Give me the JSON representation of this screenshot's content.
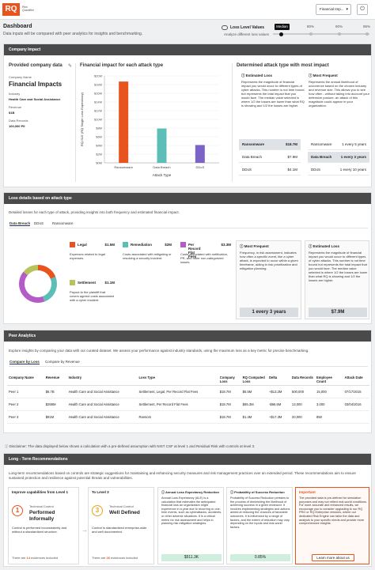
{
  "header": {
    "logo": "RQ",
    "logo_sub_1": "Risk",
    "logo_sub_2": "Quantifier",
    "org": "Financial Imp...",
    "power_icon": "power-icon"
  },
  "page": {
    "title": "Dashboard",
    "subtitle": "Data inputs will be compared with peer analytics for insights and benchmarking."
  },
  "loss_levels": {
    "title": "Loss Level Values",
    "subtitle": "Analyze different loss values",
    "median": "Median",
    "p80": "80%",
    "p90": "90%",
    "p95": "95%"
  },
  "company_impact": {
    "header": "Company Impact",
    "provided_title": "Provided company data",
    "name_label": "Company Name",
    "name": "Financial Impacts",
    "industry_label": "Industry",
    "industry": "Health Care and Social Assistance",
    "revenue_label": "Revenue",
    "revenue": "$1B",
    "records_label": "Data Records",
    "records": "100,000 PII",
    "chart_title": "Financial impact for each attack type",
    "determined_title": "Determined attack type with most impact",
    "estimated_loss_title": "Estimated Loss",
    "estimated_loss_text": "Represents the magnitude of financial impact you would occur to different types of cyber attacks. This number is not time bound but represents the total impact that you would face. The median value selected is where 1/2 the losses are lower than what RQ is showing and 1/2 the losses are higher.",
    "most_frequent_title": "Most Frequent",
    "most_frequent_text": "Represents the annual likelihood of occurrence based on the chosen industry and revenue size. This allows you to see how often - without taking into account your defensive posture- an attack of this magnitude could appear in your organization.",
    "loss_rows": [
      {
        "name": "Ransomware",
        "value": "$18.7M",
        "highlight": true
      },
      {
        "name": "Data Breach",
        "value": "$7.9M",
        "highlight": false
      },
      {
        "name": "DDoS",
        "value": "$4.1M",
        "highlight": false
      }
    ],
    "freq_rows": [
      {
        "name": "Ransomware",
        "value": "1 every 5 years",
        "highlight": false
      },
      {
        "name": "Data Breach",
        "value": "1 every 3 years",
        "highlight": true
      },
      {
        "name": "DDoS",
        "value": "1 every 10 years",
        "highlight": false
      }
    ]
  },
  "chart_data": {
    "type": "bar",
    "title": "Financial impact for each attack type",
    "categories": [
      "Ransomware",
      "Data Breach",
      "DDoS"
    ],
    "values": [
      18.7,
      7.9,
      4.1
    ],
    "colors": [
      "#e8541e",
      "#5bbfb8",
      "#7b63c8"
    ],
    "ylabel": "RQ-SLE (RQ Single Loss Expectancy)",
    "xlabel": "Attack Type",
    "yticks": [
      "$0M",
      "$2M",
      "$4M",
      "$6M",
      "$8M",
      "$10M",
      "$12M",
      "$14M",
      "$16M",
      "$18M",
      "$20M"
    ],
    "ylim": [
      0,
      20
    ]
  },
  "loss_details": {
    "header": "Loss details based on attack type",
    "description": "Detailed losses for each type of attack, providing insights into both frequency and estimated financial impact.",
    "tabs": [
      "Data Breach",
      "DDoS",
      "Ransomware"
    ],
    "donut": [
      {
        "name": "Legal",
        "value": 1.5,
        "color": "#e8541e"
      },
      {
        "name": "Remediation",
        "value": 2,
        "color": "#5bbfb8"
      },
      {
        "name": "Per Record Flat Fees",
        "value": 3.3,
        "color": "#b45bc8"
      },
      {
        "name": "Settlement",
        "value": 1.1,
        "color": "#b8c35c"
      }
    ],
    "items": [
      {
        "label": "Legal",
        "amount": "$1.5M",
        "desc": "Expenses related to legal expenses.",
        "color": "#e8541e"
      },
      {
        "label": "Remediation",
        "amount": "$2M",
        "desc": "Costs associated with mitigating or resolving a security incident.",
        "color": "#5bbfb8"
      },
      {
        "label": "Per Record Flat Fees",
        "amount": "$3.3M",
        "desc": "Costs associated with notification, PR, and other non-categorized losses.",
        "color": "#b45bc8"
      },
      {
        "label": "Settlement",
        "amount": "$1.1M",
        "desc": "Payout to the plaintiff that covers agreed costs associated with a cyber incident.",
        "color": "#b8c35c"
      }
    ],
    "most_frequent_title": "Most Frequent",
    "most_frequent_text": "Frequency, in risk assessment, indicates how often a specific event, like a cyber attack, is expected to occur within a given timeframe, aiding in risk prioritization and mitigation planning.",
    "most_frequent_value": "1 every 3 years",
    "estimated_loss_title": "Estimated Loss",
    "estimated_loss_text": "Represents the magnitude of financial impact you would occur to different types of cyber attacks. This number is not time bound but represents the total impact that you would face. The median value selected is where 1/2 the losses are lower than what RQ is showing and 1/2 the losses are higher.",
    "estimated_loss_value": "$7.9M"
  },
  "peer": {
    "header": "Peer Analytics",
    "description": "Explore insights by comparing your data with our curated dataset. We assess your performance against industry standards, using the maximum loss as a key metric for precise benchmarking.",
    "tabs": [
      "Compare by Loss",
      "Compare by Revenue"
    ],
    "columns": [
      "Company Name",
      "Revenue",
      "Industry",
      "Loss Type",
      "Company Loss",
      "RQ Computed Loss",
      "Delta",
      "Data Records",
      "Employee Count",
      "Attack Date"
    ],
    "rows": [
      [
        "Peer 1",
        "$6.7B",
        "Health Care and Social Assistance",
        "Settlement, Legal, Per Record Flat Fees",
        "$18.7M",
        "$5.5M",
        "+$13.2M",
        "500,000",
        "15,000",
        "07/17/2015"
      ],
      [
        "Peer 2",
        "$268M",
        "Health Care and Social Assistance",
        "Settlement, Per Record Flat Fees",
        "$18.7M",
        "$85.3M",
        "-$66.6M",
        "13,000",
        "3,000",
        "03/04/2016"
      ],
      [
        "Peer 3",
        "$91M",
        "Health Care and Social Assistance",
        "Ransom",
        "$18.7M",
        "$1.4M",
        "+$17.3M",
        "20,000",
        "850",
        ""
      ]
    ],
    "disclaimer": "Disclaimer: The data displayed below shows a calculation with a pre-defined assumption with NIST CSF at level 1 and Residual Risk with controls at level 3."
  },
  "recommendations": {
    "header": "Long - Term Recommendations",
    "description": "Long-term recommendations based on controls are strategic suggestions for maintaining and enhancing security measures and risk management practices over an extended period. These recommendations aim to ensure sustained protection and resilience against potential threats and vulnerabilities.",
    "improve_title": "Improve capabilities from Level 1",
    "level1_num": "1",
    "level1_label": "Technical Control",
    "level1_name": "Performed Informally",
    "level1_desc": "Control is performed inconsistently and without a standardized structure.",
    "level1_ev_pre": "There are",
    "level1_ev_count": "14",
    "level1_ev_post": "evidences included",
    "to_level_title": "To Level 3",
    "level3_num": "3",
    "level3_label": "Technical Control",
    "level3_name": "Well Defined",
    "level3_desc": "Control is standardized enterprise-wide and well documented.",
    "level3_ev_pre": "There are",
    "level3_ev_count": "26",
    "level3_ev_post": "evidences included",
    "ale_title": "Annual Loss Expectancy Reduction",
    "ale_text": "Annual Loss Expectancy (ALE) is a calculation that estimates the anticipated financial loss an organization might experience in a year due to recurring or one-time events, such as cyberattacks, accidents, or other adverse situations. It is a critical metric for risk assessment and helps in planning risk mitigation strategies.",
    "ale_value": "$511.3K",
    "psr_title": "Probability of Success Reduction",
    "psr_text": "Probability of Success Reduction pertains to the process of diminishing the likelihood of achieving success in a given endeavor. It involves implementing strategies and actions aimed at reducing the chances of favorable outcomes. It is influenced by a range of factors, and the extent of reduction may vary depending on the inputs and real-world factors.",
    "psr_value": "0.85%",
    "important_title": "Important",
    "important_text": "The provided data is pre-defined for simulation purposes and may not reflect real-world conditions. For more accurate and enhanced results, we encourage you to consider upgrading to our RQ PRO or RQ Enterprise versions, where our dedicated Risk Engine can tailor the data and analysis to your specific needs and provide more comprehensive insights.",
    "learn_more": "Learn more about us"
  }
}
